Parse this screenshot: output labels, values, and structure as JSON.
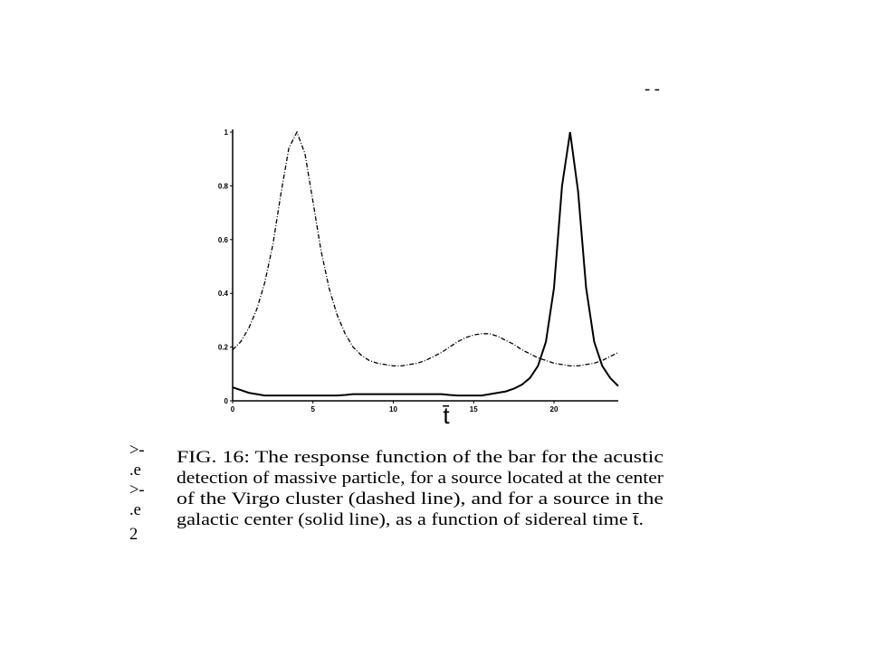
{
  "chart_data": {
    "type": "line",
    "x_label": "t̄",
    "x": [
      0,
      0.5,
      1,
      1.5,
      2,
      2.5,
      3,
      3.5,
      4,
      4.5,
      5,
      5.5,
      6,
      6.5,
      7,
      7.5,
      8,
      8.5,
      9,
      9.5,
      10,
      10.5,
      11,
      11.5,
      12,
      12.5,
      13,
      13.5,
      14,
      14.5,
      15,
      15.5,
      16,
      16.5,
      17,
      17.5,
      18,
      18.5,
      19,
      19.5,
      20,
      20.5,
      21,
      21.5,
      22,
      22.5,
      23,
      23.5,
      24
    ],
    "series": [
      {
        "color": "#000000",
        "dash": "dashdot",
        "values": [
          0.19,
          0.22,
          0.27,
          0.34,
          0.44,
          0.58,
          0.77,
          0.94,
          1.0,
          0.92,
          0.74,
          0.56,
          0.42,
          0.32,
          0.25,
          0.2,
          0.17,
          0.15,
          0.14,
          0.135,
          0.13,
          0.13,
          0.135,
          0.14,
          0.15,
          0.165,
          0.18,
          0.2,
          0.22,
          0.235,
          0.245,
          0.25,
          0.25,
          0.24,
          0.225,
          0.21,
          0.19,
          0.175,
          0.16,
          0.15,
          0.14,
          0.135,
          0.13,
          0.13,
          0.135,
          0.14,
          0.15,
          0.165,
          0.18
        ]
      },
      {
        "color": "#000000",
        "dash": "solid",
        "values": [
          0.05,
          0.04,
          0.03,
          0.025,
          0.02,
          0.02,
          0.02,
          0.02,
          0.02,
          0.02,
          0.02,
          0.02,
          0.02,
          0.02,
          0.022,
          0.025,
          0.025,
          0.025,
          0.025,
          0.025,
          0.025,
          0.025,
          0.025,
          0.025,
          0.025,
          0.025,
          0.025,
          0.022,
          0.02,
          0.02,
          0.02,
          0.02,
          0.025,
          0.03,
          0.035,
          0.045,
          0.06,
          0.085,
          0.13,
          0.22,
          0.42,
          0.8,
          1.0,
          0.78,
          0.42,
          0.22,
          0.13,
          0.085,
          0.055
        ]
      }
    ],
    "xlim": [
      0,
      24
    ],
    "ylim": [
      0,
      1
    ],
    "xticks": [
      0,
      5,
      10,
      15,
      20
    ],
    "yticks": [
      0,
      0.2,
      0.4,
      0.6,
      0.8,
      1
    ]
  },
  "caption": {
    "lines": [
      "FIG. 16: The response function of the bar for the acustic",
      "detection of massive particle, for a source located at the center",
      "of the Virgo cluster (dashed line), and for a source in the",
      "galactic center (solid line), as a function of sidereal time t̄."
    ]
  },
  "margin_fragments": [
    ">-",
    ".e",
    ">-",
    ".e",
    "2"
  ],
  "top_fragment": "- -"
}
